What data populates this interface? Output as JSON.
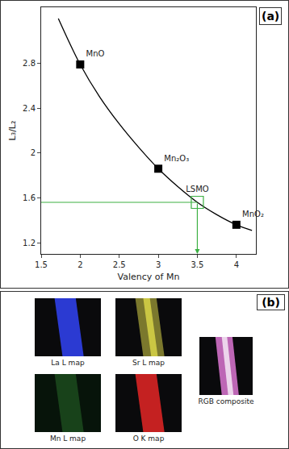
{
  "chart_data": {
    "type": "line",
    "panel_label": "(a)",
    "x_label": "Valency of Mn",
    "y_label": "L₃/L₂",
    "xlim": [
      1.5,
      4.25
    ],
    "xticks": [
      1.5,
      2,
      2.5,
      3,
      3.5,
      4
    ],
    "ylim": [
      1.1,
      3.3
    ],
    "yticks": [
      1.2,
      1.6,
      2,
      2.4,
      2.8
    ],
    "grid": false,
    "series": [
      {
        "type": "line",
        "color": "#000000",
        "line_style": "solid",
        "x": [
          1.72,
          2,
          2.25,
          2.5,
          2.75,
          3,
          3.25,
          3.5,
          3.75,
          4,
          4.2
        ],
        "values": [
          3.2,
          2.79,
          2.5,
          2.26,
          2.05,
          1.86,
          1.7,
          1.56,
          1.45,
          1.36,
          1.31
        ]
      },
      {
        "type": "scatter",
        "marker": "square",
        "color": "#000000",
        "x": [
          2,
          3,
          4
        ],
        "values": [
          2.79,
          1.86,
          1.36
        ],
        "point_labels": [
          "MnO",
          "Mn₂O₃",
          "MnO₂"
        ]
      },
      {
        "type": "scatter",
        "marker": "square-open",
        "color": "#3cb043",
        "x": [
          3.5
        ],
        "values": [
          1.56
        ],
        "point_labels": [
          "LSMO"
        ]
      }
    ]
  },
  "panel_b": {
    "label": "(b)",
    "maps": [
      {
        "label": "La L map",
        "color": "#2f3fe8"
      },
      {
        "label": "Sr L map",
        "color": "#d8d448"
      },
      {
        "label": "Mn L map",
        "color": "#2f7a2f"
      },
      {
        "label": "O K map",
        "color": "#d82424"
      }
    ],
    "composite": {
      "label": "RGB composite",
      "color": "#d070c8"
    }
  }
}
